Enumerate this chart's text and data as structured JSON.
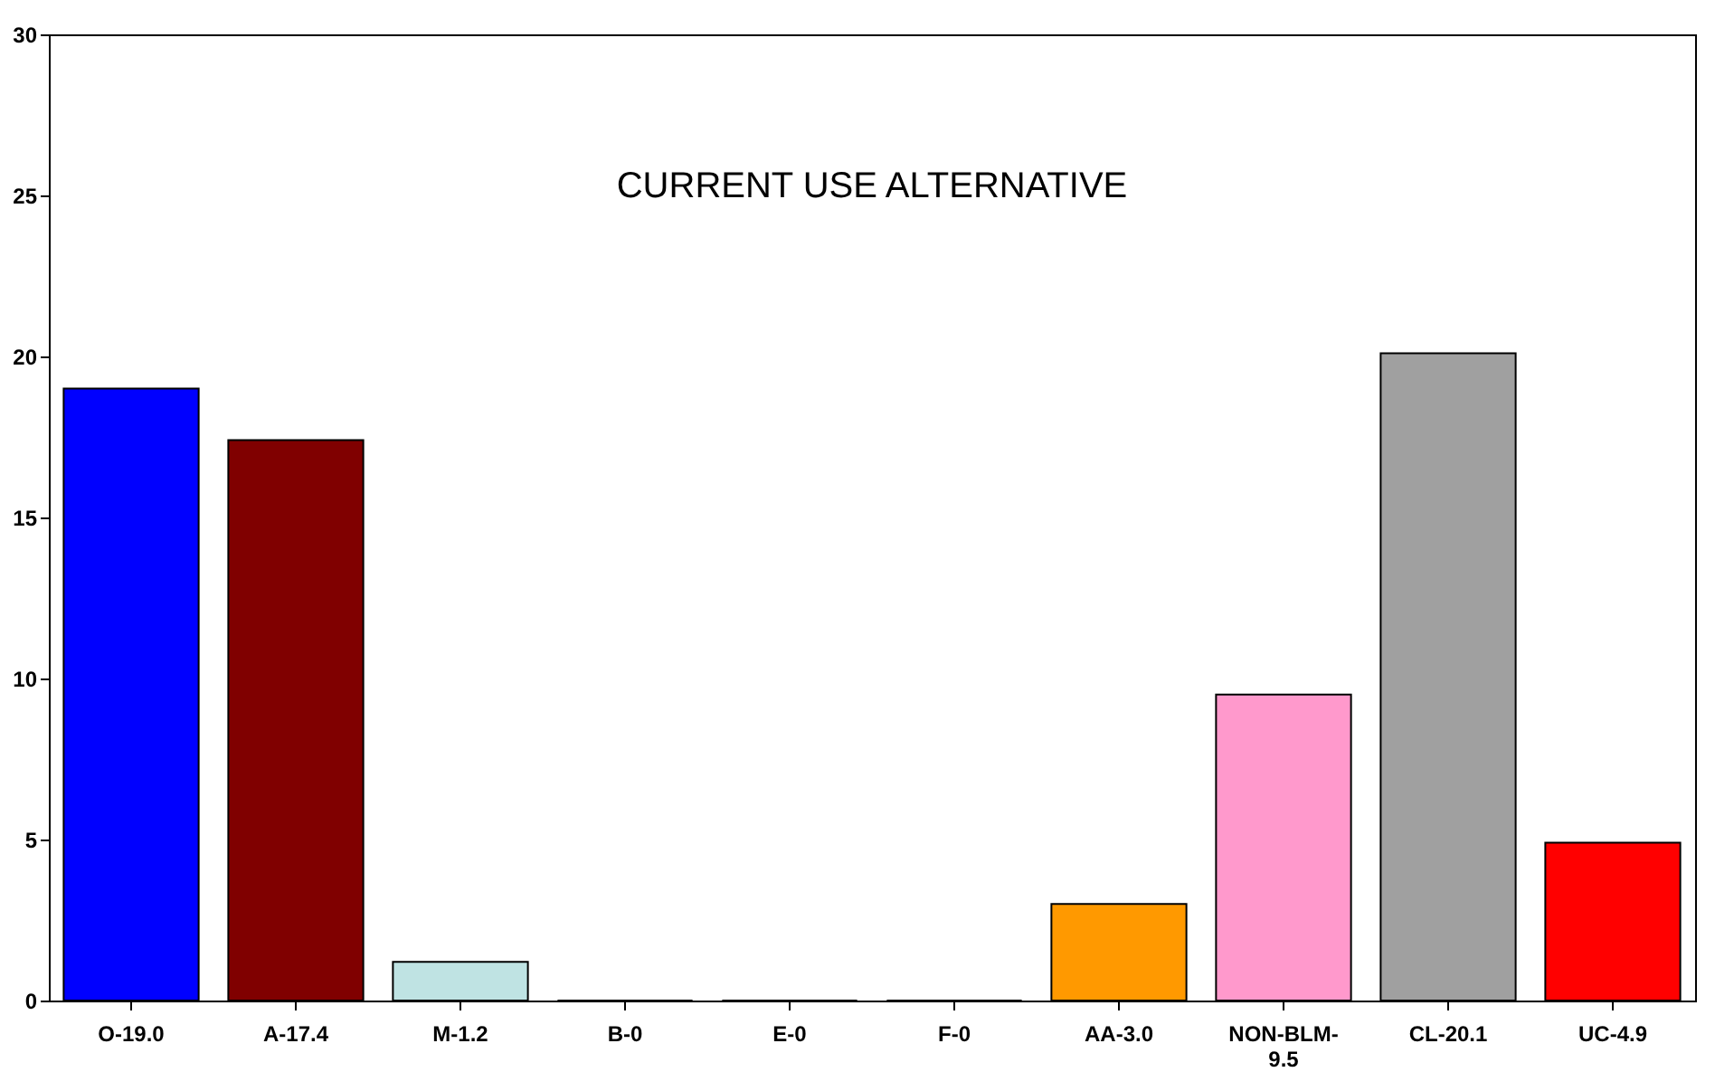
{
  "chart_data": {
    "type": "bar",
    "title": "CURRENT USE ALTERNATIVE",
    "categories": [
      "O-19.0",
      "A-17.4",
      "M-1.2",
      "B-0",
      "E-0",
      "F-0",
      "AA-3.0",
      "NON-BLM- 9.5",
      "CL-20.1",
      "UC-4.9"
    ],
    "values": [
      19.0,
      17.4,
      1.2,
      0,
      0,
      0,
      3.0,
      9.5,
      20.1,
      4.9
    ],
    "colors": [
      "#0000ff",
      "#800000",
      "#bfe3e3",
      "#000000",
      "#000000",
      "#000000",
      "#ff9900",
      "#ff99cc",
      "#a0a0a0",
      "#ff0000"
    ],
    "ylim": [
      0,
      30
    ],
    "yticks": [
      0,
      5,
      10,
      15,
      20,
      25,
      30
    ],
    "grid": false,
    "legend": false
  }
}
